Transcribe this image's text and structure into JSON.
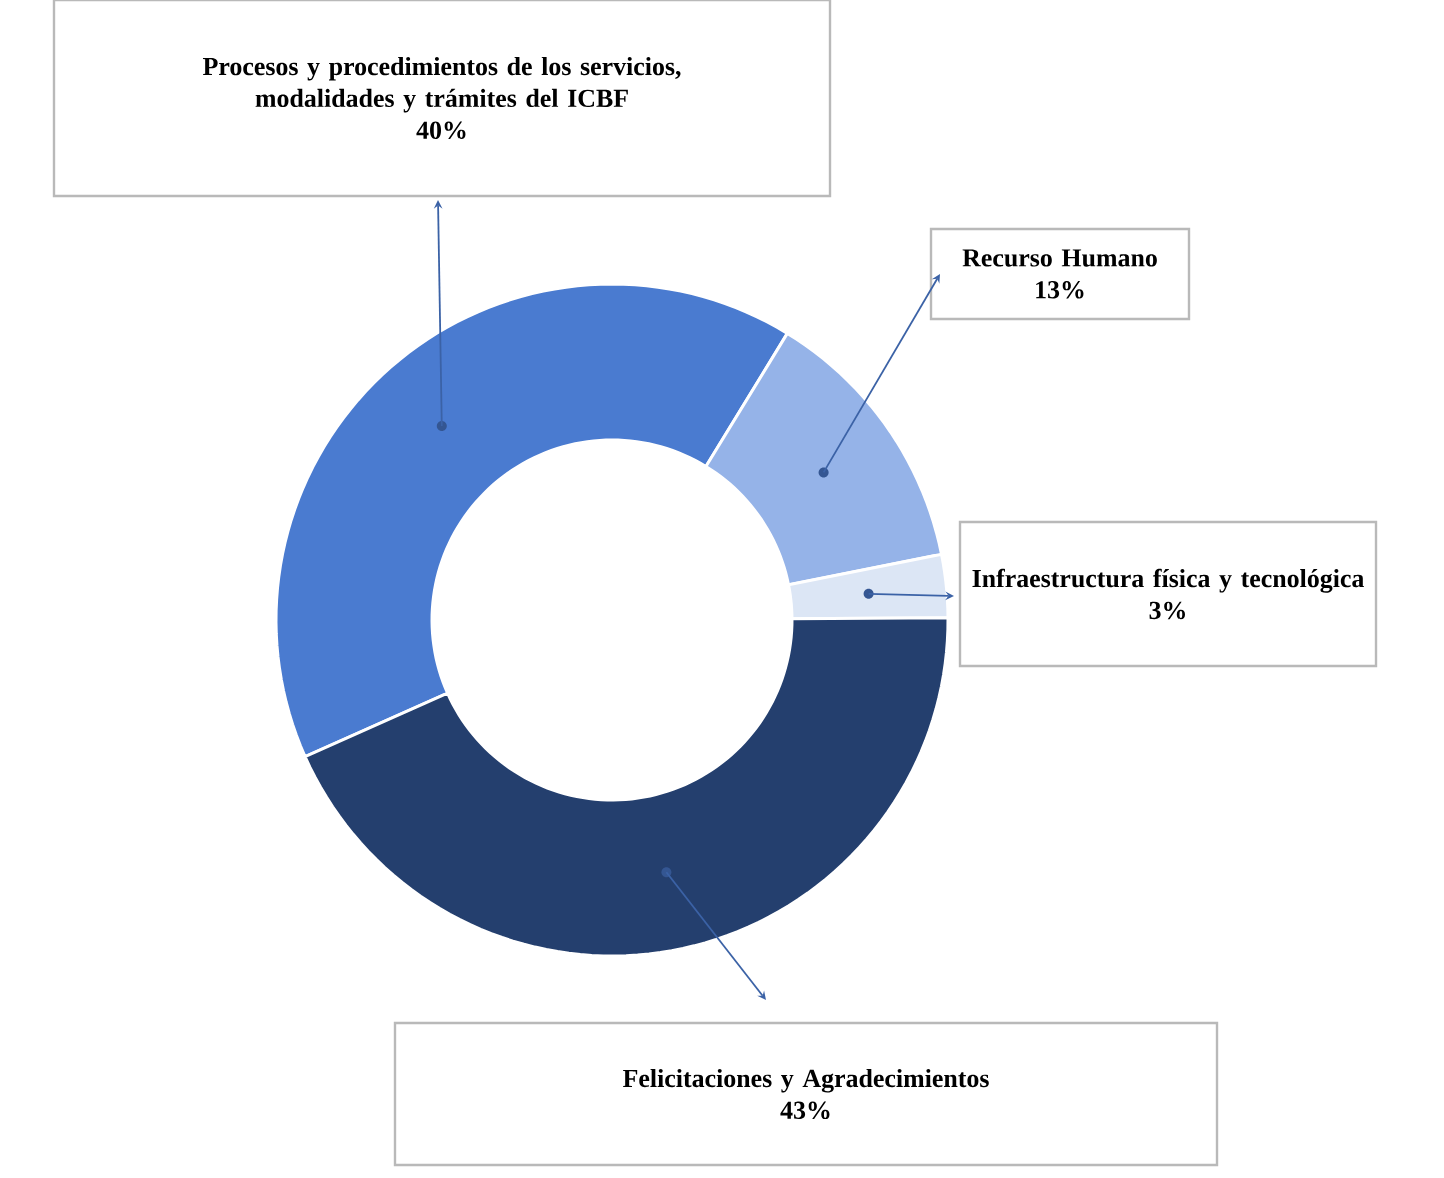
{
  "chart_data": {
    "type": "donut",
    "categories": [
      "Procesos y procedimientos de los servicios, modalidades y trámites del ICBF",
      "Recurso Humano",
      "Infraestructura física y tecnológica",
      "Felicitaciones y Agradecimientos"
    ],
    "values": [
      40,
      13,
      3,
      43
    ],
    "value_labels": [
      "40%",
      "13%",
      "3%",
      "43%"
    ],
    "colors": [
      "#4a7bd0",
      "#95b3e8",
      "#dce6f5",
      "#243f6e"
    ]
  }
}
